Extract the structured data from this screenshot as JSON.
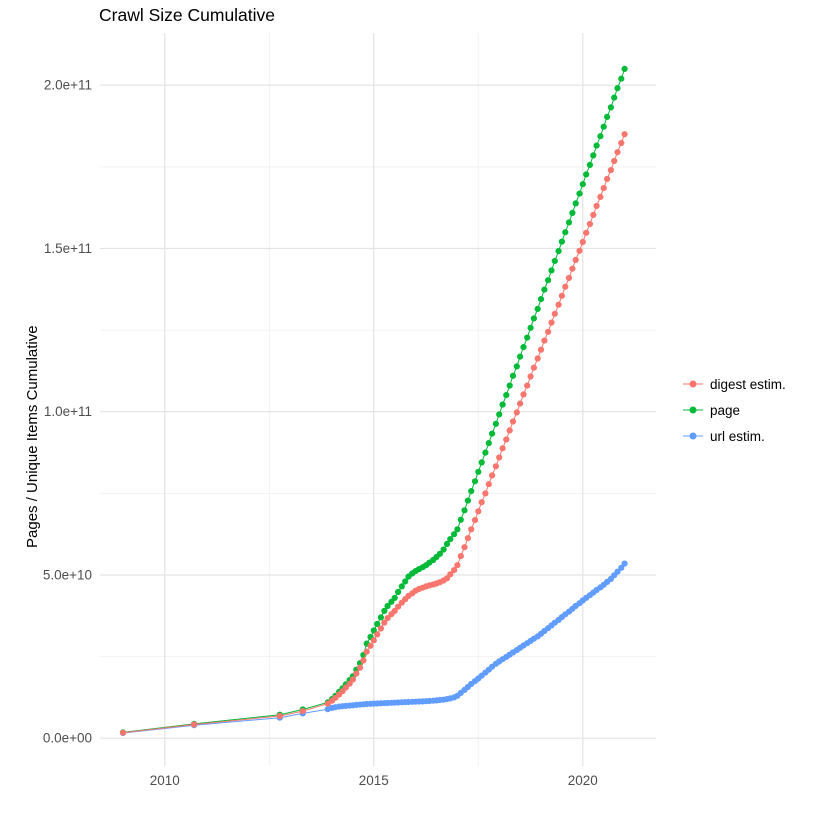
{
  "chart_data": {
    "type": "line",
    "title": "Crawl Size Cumulative",
    "xlabel": "",
    "ylabel": "Pages / Unique Items Cumulative",
    "y_unit": "billions (1e9)",
    "x_domain": [
      2008.45,
      2021.75
    ],
    "y_domain": [
      -8.5,
      216
    ],
    "x_ticks": {
      "values": [
        2010,
        2015,
        2020
      ],
      "labels": [
        "2010",
        "2015",
        "2020"
      ]
    },
    "y_ticks": {
      "values": [
        0,
        50,
        100,
        150,
        200
      ],
      "labels": [
        "0.0e+00",
        "5.0e+10",
        "1.0e+11",
        "1.5e+11",
        "2.0e+11"
      ]
    },
    "x_minor": [
      2012.5,
      2017.5
    ],
    "y_minor": [
      25,
      75,
      125,
      175
    ],
    "grid": true,
    "legend_position": "right",
    "colors": {
      "grid_major": "#e3e3e3",
      "grid_minor": "#f2f2f2",
      "tick_text": "#4d4d4d",
      "title_text": "#000000"
    },
    "series": [
      {
        "id": "digest-estim",
        "label": "digest estim.",
        "color": "#F8766D",
        "points": [
          [
            2009.0,
            1.7
          ],
          [
            2010.7,
            4.2
          ],
          [
            2012.75,
            6.8
          ],
          [
            2013.3,
            8.3
          ],
          [
            2013.9,
            10.6
          ],
          [
            2014.0,
            11.5
          ],
          [
            2014.08,
            12.4
          ],
          [
            2014.17,
            13.4
          ],
          [
            2014.25,
            14.4
          ],
          [
            2014.33,
            15.5
          ],
          [
            2014.42,
            16.7
          ],
          [
            2014.5,
            18.0
          ],
          [
            2014.58,
            19.8
          ],
          [
            2014.67,
            21.6
          ],
          [
            2014.75,
            23.8
          ],
          [
            2014.83,
            26.5
          ],
          [
            2014.92,
            28.3
          ],
          [
            2015.0,
            30.0
          ],
          [
            2015.08,
            31.8
          ],
          [
            2015.17,
            33.6
          ],
          [
            2015.25,
            35.4
          ],
          [
            2015.33,
            36.8
          ],
          [
            2015.42,
            38.0
          ],
          [
            2015.5,
            39.0
          ],
          [
            2015.58,
            40.3
          ],
          [
            2015.67,
            41.5
          ],
          [
            2015.75,
            42.6
          ],
          [
            2015.83,
            43.6
          ],
          [
            2015.92,
            44.4
          ],
          [
            2016.0,
            45.2
          ],
          [
            2016.08,
            45.7
          ],
          [
            2016.17,
            46.1
          ],
          [
            2016.25,
            46.5
          ],
          [
            2016.33,
            46.8
          ],
          [
            2016.42,
            47.1
          ],
          [
            2016.5,
            47.4
          ],
          [
            2016.58,
            47.8
          ],
          [
            2016.67,
            48.3
          ],
          [
            2016.75,
            49.0
          ],
          [
            2016.83,
            50.2
          ],
          [
            2016.92,
            51.5
          ],
          [
            2017.0,
            53.0
          ],
          [
            2017.08,
            55.8
          ],
          [
            2017.17,
            58.5
          ],
          [
            2017.25,
            61.3
          ],
          [
            2017.33,
            64.0
          ],
          [
            2017.42,
            66.8
          ],
          [
            2017.5,
            69.5
          ],
          [
            2017.58,
            72.3
          ],
          [
            2017.67,
            75.0
          ],
          [
            2017.75,
            77.8
          ],
          [
            2017.83,
            80.5
          ],
          [
            2017.92,
            83.3
          ],
          [
            2018.0,
            86.0
          ],
          [
            2018.08,
            88.8
          ],
          [
            2018.17,
            91.5
          ],
          [
            2018.25,
            94.3
          ],
          [
            2018.33,
            97.0
          ],
          [
            2018.42,
            99.8
          ],
          [
            2018.5,
            102.5
          ],
          [
            2018.58,
            105.3
          ],
          [
            2018.67,
            108.0
          ],
          [
            2018.75,
            110.8
          ],
          [
            2018.83,
            113.5
          ],
          [
            2018.92,
            116.3
          ],
          [
            2019.0,
            119.0
          ],
          [
            2019.08,
            121.8
          ],
          [
            2019.17,
            124.5
          ],
          [
            2019.25,
            127.3
          ],
          [
            2019.33,
            130.0
          ],
          [
            2019.42,
            132.8
          ],
          [
            2019.5,
            135.5
          ],
          [
            2019.58,
            138.3
          ],
          [
            2019.67,
            141.0
          ],
          [
            2019.75,
            143.8
          ],
          [
            2019.83,
            146.5
          ],
          [
            2019.92,
            149.3
          ],
          [
            2020.0,
            152.0
          ],
          [
            2020.08,
            154.8
          ],
          [
            2020.17,
            157.5
          ],
          [
            2020.25,
            160.3
          ],
          [
            2020.33,
            163.0
          ],
          [
            2020.42,
            165.8
          ],
          [
            2020.5,
            168.5
          ],
          [
            2020.58,
            171.3
          ],
          [
            2020.67,
            174.0
          ],
          [
            2020.75,
            176.8
          ],
          [
            2020.83,
            179.5
          ],
          [
            2020.92,
            182.3
          ],
          [
            2021.0,
            185.0
          ]
        ]
      },
      {
        "id": "page",
        "label": "page",
        "color": "#00BA38",
        "points": [
          [
            2009.0,
            1.8
          ],
          [
            2010.7,
            4.4
          ],
          [
            2012.75,
            7.2
          ],
          [
            2013.3,
            8.8
          ],
          [
            2013.9,
            11.0
          ],
          [
            2014.0,
            12.0
          ],
          [
            2014.08,
            13.0
          ],
          [
            2014.17,
            14.2
          ],
          [
            2014.25,
            15.3
          ],
          [
            2014.33,
            16.5
          ],
          [
            2014.42,
            17.8
          ],
          [
            2014.5,
            19.0
          ],
          [
            2014.58,
            21.0
          ],
          [
            2014.67,
            23.0
          ],
          [
            2014.75,
            25.5
          ],
          [
            2014.83,
            29.0
          ],
          [
            2014.92,
            31.0
          ],
          [
            2015.0,
            33.0
          ],
          [
            2015.08,
            35.0
          ],
          [
            2015.17,
            37.0
          ],
          [
            2015.25,
            39.0
          ],
          [
            2015.33,
            40.5
          ],
          [
            2015.42,
            41.8
          ],
          [
            2015.5,
            43.0
          ],
          [
            2015.58,
            44.8
          ],
          [
            2015.67,
            46.5
          ],
          [
            2015.75,
            48.0
          ],
          [
            2015.83,
            49.5
          ],
          [
            2015.92,
            50.5
          ],
          [
            2016.0,
            51.2
          ],
          [
            2016.08,
            51.8
          ],
          [
            2016.17,
            52.4
          ],
          [
            2016.25,
            53.0
          ],
          [
            2016.33,
            53.8
          ],
          [
            2016.42,
            54.6
          ],
          [
            2016.5,
            55.5
          ],
          [
            2016.58,
            56.5
          ],
          [
            2016.67,
            57.8
          ],
          [
            2016.75,
            59.5
          ],
          [
            2016.83,
            61.0
          ],
          [
            2016.92,
            62.5
          ],
          [
            2017.0,
            64.0
          ],
          [
            2017.08,
            66.9
          ],
          [
            2017.17,
            69.8
          ],
          [
            2017.25,
            72.8
          ],
          [
            2017.33,
            75.7
          ],
          [
            2017.42,
            78.7
          ],
          [
            2017.5,
            81.6
          ],
          [
            2017.58,
            84.5
          ],
          [
            2017.67,
            87.5
          ],
          [
            2017.75,
            90.4
          ],
          [
            2017.83,
            93.3
          ],
          [
            2017.92,
            96.3
          ],
          [
            2018.0,
            99.2
          ],
          [
            2018.08,
            102.2
          ],
          [
            2018.17,
            105.1
          ],
          [
            2018.25,
            108.0
          ],
          [
            2018.33,
            111.0
          ],
          [
            2018.42,
            113.9
          ],
          [
            2018.5,
            116.9
          ],
          [
            2018.58,
            119.8
          ],
          [
            2018.67,
            122.7
          ],
          [
            2018.75,
            125.7
          ],
          [
            2018.83,
            128.6
          ],
          [
            2018.92,
            131.5
          ],
          [
            2019.0,
            134.5
          ],
          [
            2019.08,
            137.4
          ],
          [
            2019.17,
            140.3
          ],
          [
            2019.25,
            143.3
          ],
          [
            2019.33,
            146.2
          ],
          [
            2019.42,
            149.2
          ],
          [
            2019.5,
            152.1
          ],
          [
            2019.58,
            155.0
          ],
          [
            2019.67,
            158.0
          ],
          [
            2019.75,
            160.9
          ],
          [
            2019.83,
            163.8
          ],
          [
            2019.92,
            166.8
          ],
          [
            2020.0,
            169.7
          ],
          [
            2020.08,
            172.7
          ],
          [
            2020.17,
            175.6
          ],
          [
            2020.25,
            178.5
          ],
          [
            2020.33,
            181.5
          ],
          [
            2020.42,
            184.4
          ],
          [
            2020.5,
            187.3
          ],
          [
            2020.58,
            190.3
          ],
          [
            2020.67,
            193.2
          ],
          [
            2020.75,
            196.2
          ],
          [
            2020.83,
            199.1
          ],
          [
            2020.92,
            202.0
          ],
          [
            2021.0,
            205.0
          ]
        ]
      },
      {
        "id": "url-estim",
        "label": "url estim.",
        "color": "#619CFF",
        "points": [
          [
            2009.0,
            1.6
          ],
          [
            2010.7,
            4.0
          ],
          [
            2012.75,
            6.3
          ],
          [
            2013.3,
            7.6
          ],
          [
            2013.9,
            8.9
          ],
          [
            2014.0,
            9.3
          ],
          [
            2014.08,
            9.5
          ],
          [
            2014.17,
            9.7
          ],
          [
            2014.25,
            9.8
          ],
          [
            2014.33,
            9.9
          ],
          [
            2014.42,
            10.0
          ],
          [
            2014.5,
            10.1
          ],
          [
            2014.58,
            10.2
          ],
          [
            2014.67,
            10.3
          ],
          [
            2014.75,
            10.4
          ],
          [
            2014.83,
            10.5
          ],
          [
            2014.92,
            10.55
          ],
          [
            2015.0,
            10.6
          ],
          [
            2015.08,
            10.65
          ],
          [
            2015.17,
            10.7
          ],
          [
            2015.25,
            10.75
          ],
          [
            2015.33,
            10.8
          ],
          [
            2015.42,
            10.85
          ],
          [
            2015.5,
            10.9
          ],
          [
            2015.58,
            10.95
          ],
          [
            2015.67,
            11.0
          ],
          [
            2015.75,
            11.05
          ],
          [
            2015.83,
            11.1
          ],
          [
            2015.92,
            11.15
          ],
          [
            2016.0,
            11.2
          ],
          [
            2016.08,
            11.25
          ],
          [
            2016.17,
            11.3
          ],
          [
            2016.25,
            11.35
          ],
          [
            2016.33,
            11.4
          ],
          [
            2016.42,
            11.5
          ],
          [
            2016.5,
            11.6
          ],
          [
            2016.58,
            11.7
          ],
          [
            2016.67,
            11.8
          ],
          [
            2016.75,
            12.0
          ],
          [
            2016.83,
            12.2
          ],
          [
            2016.92,
            12.5
          ],
          [
            2017.0,
            13.0
          ],
          [
            2017.08,
            13.9
          ],
          [
            2017.17,
            14.8
          ],
          [
            2017.25,
            15.7
          ],
          [
            2017.33,
            16.6
          ],
          [
            2017.42,
            17.5
          ],
          [
            2017.5,
            18.3
          ],
          [
            2017.58,
            19.2
          ],
          [
            2017.67,
            20.1
          ],
          [
            2017.75,
            21.0
          ],
          [
            2017.83,
            21.9
          ],
          [
            2017.92,
            22.8
          ],
          [
            2018.0,
            23.5
          ],
          [
            2018.08,
            24.2
          ],
          [
            2018.17,
            24.9
          ],
          [
            2018.25,
            25.6
          ],
          [
            2018.33,
            26.3
          ],
          [
            2018.42,
            27.0
          ],
          [
            2018.5,
            27.7
          ],
          [
            2018.58,
            28.4
          ],
          [
            2018.67,
            29.1
          ],
          [
            2018.75,
            29.8
          ],
          [
            2018.83,
            30.5
          ],
          [
            2018.92,
            31.2
          ],
          [
            2019.0,
            32.0
          ],
          [
            2019.08,
            32.85
          ],
          [
            2019.17,
            33.7
          ],
          [
            2019.25,
            34.55
          ],
          [
            2019.33,
            35.4
          ],
          [
            2019.42,
            36.25
          ],
          [
            2019.5,
            37.1
          ],
          [
            2019.58,
            37.95
          ],
          [
            2019.67,
            38.8
          ],
          [
            2019.75,
            39.65
          ],
          [
            2019.83,
            40.5
          ],
          [
            2019.92,
            41.35
          ],
          [
            2020.0,
            42.2
          ],
          [
            2020.08,
            43.0
          ],
          [
            2020.17,
            43.8
          ],
          [
            2020.25,
            44.6
          ],
          [
            2020.33,
            45.4
          ],
          [
            2020.42,
            46.2
          ],
          [
            2020.5,
            47.0
          ],
          [
            2020.58,
            47.9
          ],
          [
            2020.67,
            48.8
          ],
          [
            2020.75,
            49.9
          ],
          [
            2020.83,
            51.0
          ],
          [
            2020.92,
            52.2
          ],
          [
            2021.0,
            53.5
          ]
        ]
      }
    ]
  }
}
